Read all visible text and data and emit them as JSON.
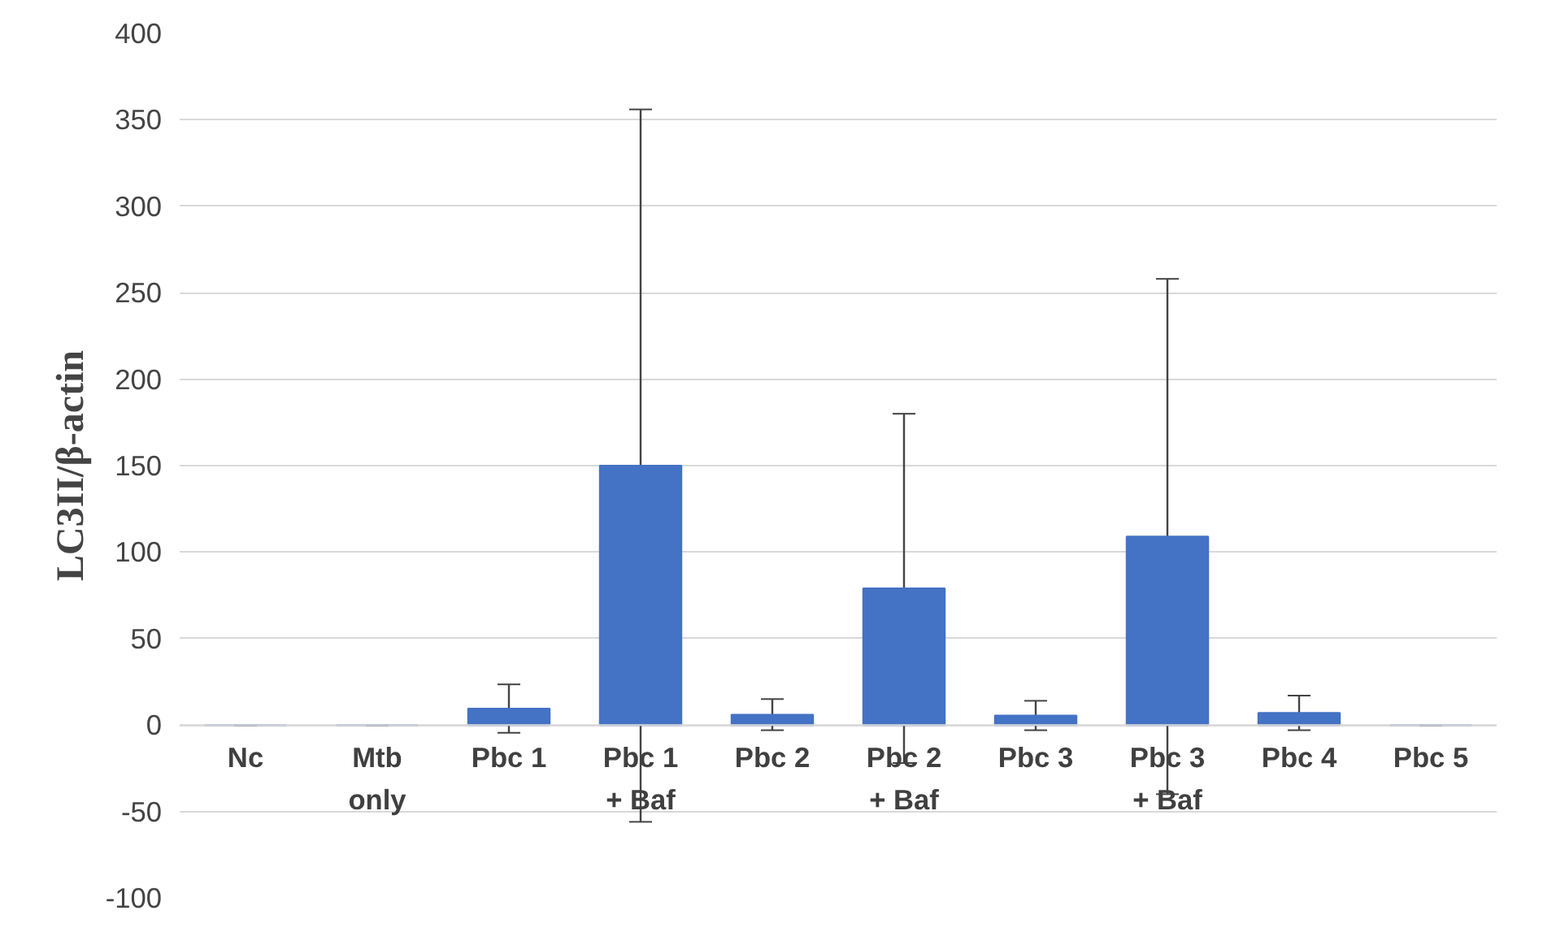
{
  "chart_data": {
    "type": "bar",
    "ylabel": "LC3II/β-actin",
    "categories": [
      "Nc",
      "Mtb only",
      "Pbc 1",
      "Pbc 1 + Baf",
      "Pbc 2",
      "Pbc 2 + Baf",
      "Pbc 3",
      "Pbc 3 + Baf",
      "Pbc 4",
      "Pbc 5"
    ],
    "values": [
      0,
      0,
      9.5,
      150,
      6,
      79,
      5.5,
      109,
      7,
      0
    ],
    "errors": [
      0,
      0,
      14,
      206,
      9,
      101,
      8.5,
      149,
      10,
      0
    ],
    "color": "#4472c4",
    "ylim": [
      -100,
      400
    ],
    "yticks": [
      -100,
      -50,
      0,
      50,
      100,
      150,
      200,
      250,
      300,
      350,
      400
    ],
    "grid": "y"
  }
}
